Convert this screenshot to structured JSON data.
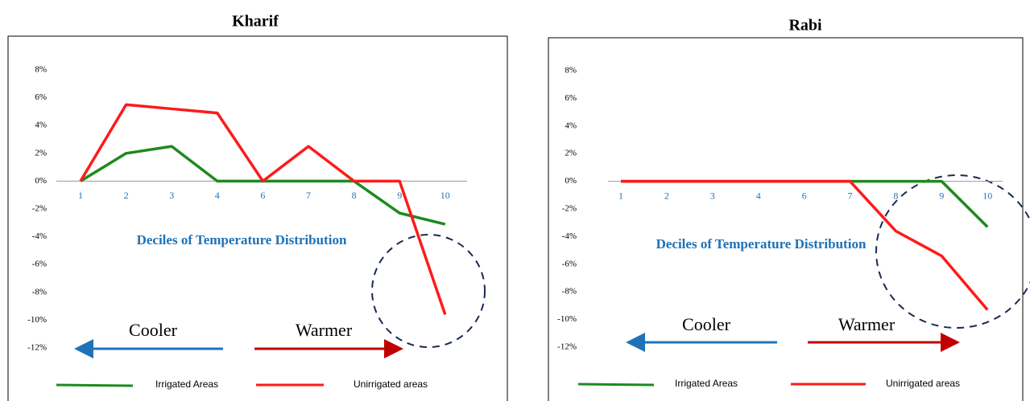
{
  "chart_data": [
    {
      "type": "line",
      "title": "Kharif",
      "categories": [
        "1",
        "2",
        "3",
        "4",
        "6",
        "7",
        "8",
        "9",
        "10"
      ],
      "series": [
        {
          "name": "Irrigated Areas",
          "color": "#1e8a1e",
          "values": [
            0,
            2,
            2.5,
            0,
            0,
            0,
            0,
            -2.3,
            -3.1
          ]
        },
        {
          "name": "Unirrigated areas",
          "color": "#ff1a1a",
          "values": [
            0,
            5.5,
            5.2,
            4.9,
            0,
            2.5,
            0,
            0,
            -9.6
          ]
        }
      ],
      "ylim": [
        -12,
        8
      ],
      "yticks": [
        {
          "value": -12,
          "label": "-12%"
        },
        {
          "value": -10,
          "label": "-10%"
        },
        {
          "value": -8,
          "label": "-8%"
        },
        {
          "value": -6,
          "label": "-6%"
        },
        {
          "value": -4,
          "label": "-4%"
        },
        {
          "value": -2,
          "label": "-2%"
        },
        {
          "value": 0,
          "label": "0%"
        },
        {
          "value": 2,
          "label": "2%"
        },
        {
          "value": 4,
          "label": "4%"
        },
        {
          "value": 6,
          "label": "6%"
        },
        {
          "value": 8,
          "label": "8%"
        }
      ],
      "x_label": "Deciles of Temperature Distribution",
      "annotations": [
        "Cooler",
        "Warmer"
      ]
    },
    {
      "type": "line",
      "title": "Rabi",
      "categories": [
        "1",
        "2",
        "3",
        "4",
        "6",
        "7",
        "8",
        "9",
        "10"
      ],
      "series": [
        {
          "name": "Irrigated Areas",
          "color": "#1e8a1e",
          "values": [
            0,
            0,
            0,
            0,
            0,
            0,
            0,
            0,
            -3.3
          ]
        },
        {
          "name": "Unirrigated areas",
          "color": "#ff1a1a",
          "values": [
            0,
            0,
            0,
            0,
            0,
            0,
            -3.6,
            -5.4,
            -9.3
          ]
        }
      ],
      "ylim": [
        -12,
        8
      ],
      "yticks": [
        {
          "value": -12,
          "label": "-12%"
        },
        {
          "value": -10,
          "label": "-10%"
        },
        {
          "value": -8,
          "label": "-8%"
        },
        {
          "value": -6,
          "label": "-6%"
        },
        {
          "value": -4,
          "label": "-4%"
        },
        {
          "value": -2,
          "label": "-2%"
        },
        {
          "value": 0,
          "label": "0%"
        },
        {
          "value": 2,
          "label": "2%"
        },
        {
          "value": 4,
          "label": "4%"
        },
        {
          "value": 6,
          "label": "6%"
        },
        {
          "value": 8,
          "label": "8%"
        }
      ],
      "x_label": "Deciles of Temperature Distribution",
      "annotations": [
        "Cooler",
        "Warmer"
      ]
    }
  ]
}
